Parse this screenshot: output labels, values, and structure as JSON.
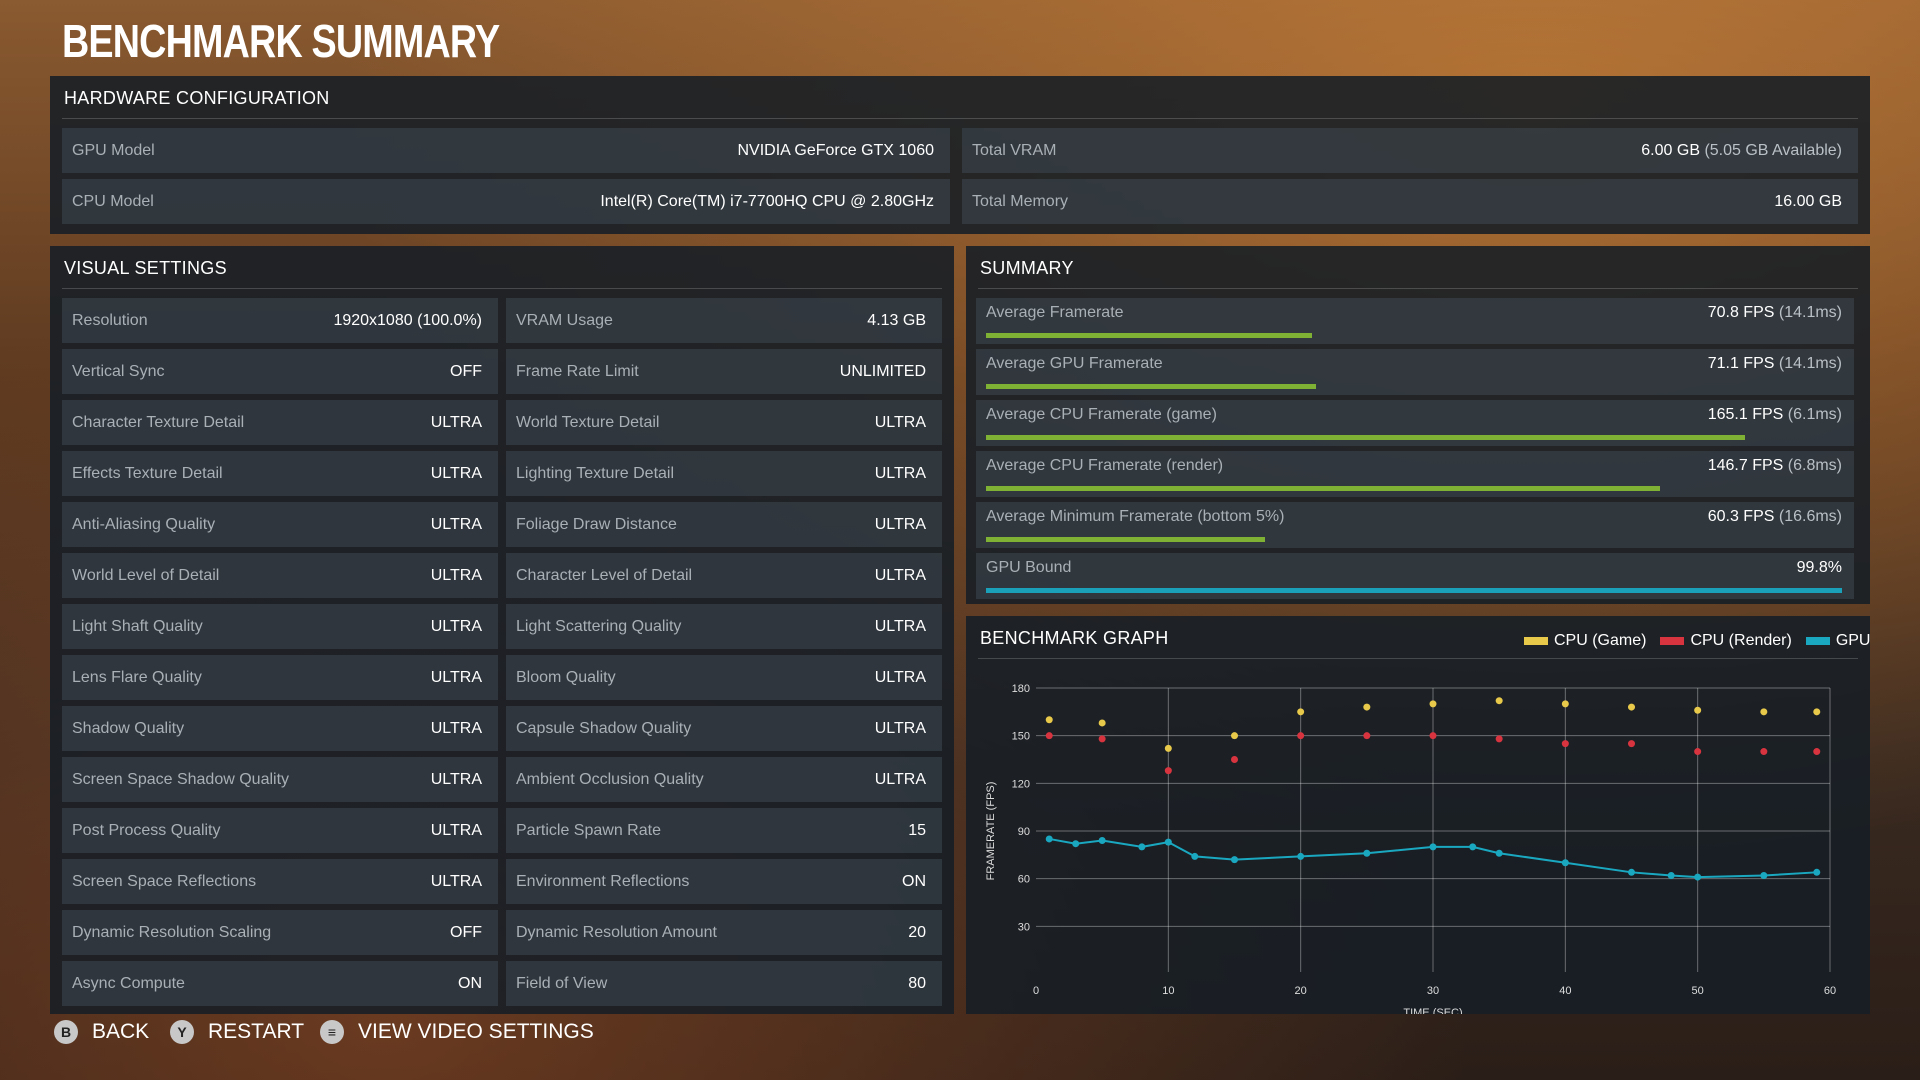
{
  "page_title": "BENCHMARK SUMMARY",
  "hardware": {
    "title": "HARDWARE CONFIGURATION",
    "gpu_label": "GPU Model",
    "gpu_value": "NVIDIA GeForce GTX 1060",
    "cpu_label": "CPU Model",
    "cpu_value": "Intel(R) Core(TM) i7-7700HQ CPU @ 2.80GHz",
    "vram_label": "Total VRAM",
    "vram_value": "6.00 GB",
    "vram_sub": "(5.05 GB Available)",
    "mem_label": "Total Memory",
    "mem_value": "16.00 GB"
  },
  "visual": {
    "title": "VISUAL SETTINGS",
    "left": [
      {
        "label": "Resolution",
        "value": "1920x1080 (100.0%)"
      },
      {
        "label": "Vertical Sync",
        "value": "OFF"
      },
      {
        "label": "Character Texture Detail",
        "value": "ULTRA"
      },
      {
        "label": "Effects Texture Detail",
        "value": "ULTRA"
      },
      {
        "label": "Anti-Aliasing Quality",
        "value": "ULTRA"
      },
      {
        "label": "World Level of Detail",
        "value": "ULTRA"
      },
      {
        "label": "Light Shaft Quality",
        "value": "ULTRA"
      },
      {
        "label": "Lens Flare Quality",
        "value": "ULTRA"
      },
      {
        "label": "Shadow Quality",
        "value": "ULTRA"
      },
      {
        "label": "Screen Space Shadow Quality",
        "value": "ULTRA"
      },
      {
        "label": "Post Process Quality",
        "value": "ULTRA"
      },
      {
        "label": "Screen Space Reflections",
        "value": "ULTRA"
      },
      {
        "label": "Dynamic Resolution Scaling",
        "value": "OFF"
      },
      {
        "label": "Async Compute",
        "value": "ON"
      }
    ],
    "right": [
      {
        "label": "VRAM Usage",
        "value": "4.13 GB"
      },
      {
        "label": "Frame Rate Limit",
        "value": "UNLIMITED"
      },
      {
        "label": "World Texture Detail",
        "value": "ULTRA"
      },
      {
        "label": "Lighting Texture Detail",
        "value": "ULTRA"
      },
      {
        "label": "Foliage Draw Distance",
        "value": "ULTRA"
      },
      {
        "label": "Character Level of Detail",
        "value": "ULTRA"
      },
      {
        "label": "Light Scattering Quality",
        "value": "ULTRA"
      },
      {
        "label": "Bloom Quality",
        "value": "ULTRA"
      },
      {
        "label": "Capsule Shadow Quality",
        "value": "ULTRA"
      },
      {
        "label": "Ambient Occlusion Quality",
        "value": "ULTRA"
      },
      {
        "label": "Particle Spawn Rate",
        "value": "15"
      },
      {
        "label": "Environment Reflections",
        "value": "ON"
      },
      {
        "label": "Dynamic Resolution Amount",
        "value": "20"
      },
      {
        "label": "Field of View",
        "value": "80"
      }
    ]
  },
  "summary": {
    "title": "SUMMARY",
    "rows": [
      {
        "label": "Average Framerate",
        "value": "70.8 FPS",
        "sub": "(14.1ms)",
        "fill": 0.38,
        "color": "#7fb234"
      },
      {
        "label": "Average GPU Framerate",
        "value": "71.1 FPS",
        "sub": "(14.1ms)",
        "fill": 0.385,
        "color": "#7fb234"
      },
      {
        "label": "Average CPU Framerate (game)",
        "value": "165.1 FPS",
        "sub": "(6.1ms)",
        "fill": 0.885,
        "color": "#7fb234"
      },
      {
        "label": "Average CPU Framerate (render)",
        "value": "146.7 FPS",
        "sub": "(6.8ms)",
        "fill": 0.785,
        "color": "#7fb234"
      },
      {
        "label": "Average Minimum Framerate (bottom 5%)",
        "value": "60.3 FPS",
        "sub": "(16.6ms)",
        "fill": 0.325,
        "color": "#7fb234"
      },
      {
        "label": "GPU Bound",
        "value": "99.8%",
        "sub": "",
        "fill": 0.998,
        "color": "#1aa0b8"
      }
    ]
  },
  "graph": {
    "title": "BENCHMARK GRAPH",
    "legend": [
      {
        "name": "CPU (Game)",
        "color": "#e8c94a"
      },
      {
        "name": "CPU (Render)",
        "color": "#d8343f"
      },
      {
        "name": "GPU",
        "color": "#1aa8c0"
      }
    ]
  },
  "chart_data": {
    "type": "scatter",
    "xlabel": "TIME (SEC)",
    "ylabel": "FRAMERATE (FPS)",
    "xlim": [
      0,
      60
    ],
    "ylim": [
      0,
      180
    ],
    "xticks": [
      0,
      10,
      20,
      30,
      40,
      50,
      60
    ],
    "yticks": [
      30,
      60,
      90,
      120,
      150,
      180
    ],
    "grid": true,
    "series": [
      {
        "name": "CPU (Game)",
        "color": "#e8c94a",
        "x": [
          1,
          5,
          10,
          15,
          20,
          25,
          30,
          35,
          40,
          45,
          50,
          55,
          59
        ],
        "y": [
          160,
          158,
          142,
          150,
          165,
          168,
          170,
          172,
          170,
          168,
          166,
          165,
          165
        ]
      },
      {
        "name": "CPU (Render)",
        "color": "#d8343f",
        "x": [
          1,
          5,
          10,
          15,
          20,
          25,
          30,
          35,
          40,
          45,
          50,
          55,
          59
        ],
        "y": [
          150,
          148,
          128,
          135,
          150,
          150,
          150,
          148,
          145,
          145,
          140,
          140,
          140
        ]
      },
      {
        "name": "GPU",
        "color": "#1aa8c0",
        "x": [
          1,
          3,
          5,
          8,
          10,
          12,
          15,
          20,
          25,
          30,
          33,
          35,
          40,
          45,
          48,
          50,
          55,
          59
        ],
        "y": [
          85,
          82,
          84,
          80,
          83,
          74,
          72,
          74,
          76,
          80,
          80,
          76,
          70,
          64,
          62,
          61,
          62,
          64
        ]
      }
    ]
  },
  "footer": [
    {
      "icon": "B",
      "label": "BACK"
    },
    {
      "icon": "Y",
      "label": "RESTART"
    },
    {
      "icon": "≡",
      "label": "VIEW VIDEO SETTINGS"
    }
  ]
}
